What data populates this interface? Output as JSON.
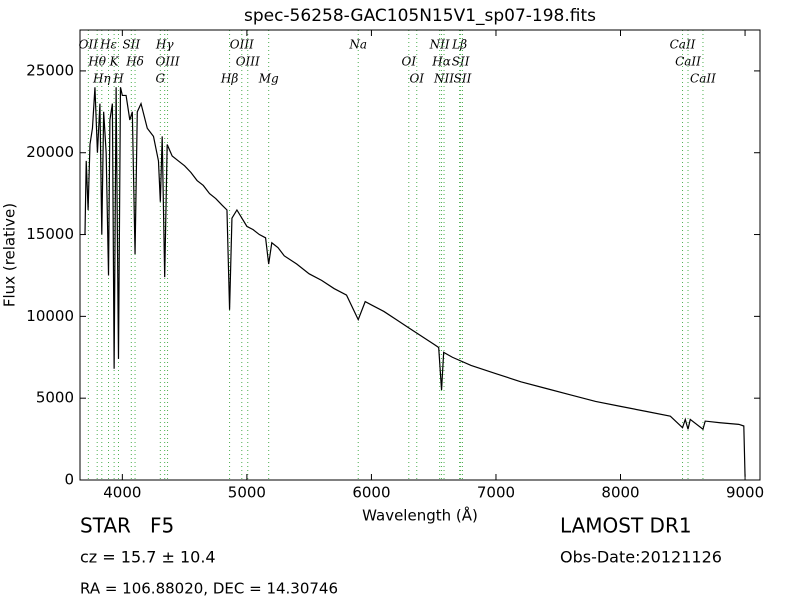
{
  "chart_data": {
    "type": "line",
    "title": "spec-56258-GAC105N15V1_sp07-198.fits",
    "x_label": "Wavelength (Å)",
    "y_label": "Flux (relative)",
    "class_text": "STAR   F5",
    "cz_text": "cz = 15.7 ± 10.4",
    "coord_text": "RA = 106.88020, DEC = 14.30746",
    "survey_text": "LAMOST DR1",
    "date_text": "Obs-Date:20121126",
    "color": "#000000",
    "line_color": "#4caf50",
    "xlim": [
      3660,
      9120
    ],
    "ylim": [
      0,
      27500
    ],
    "xticks": [
      4000,
      5000,
      6000,
      7000,
      8000,
      9000
    ],
    "yticks": [
      0,
      5000,
      10000,
      15000,
      20000,
      25000
    ],
    "x": [
      3700,
      3710,
      3725,
      3740,
      3760,
      3780,
      3800,
      3820,
      3835,
      3850,
      3870,
      3889,
      3900,
      3920,
      3934,
      3950,
      3969,
      3985,
      4000,
      4030,
      4060,
      4080,
      4102,
      4120,
      4150,
      4200,
      4250,
      4290,
      4305,
      4320,
      4340,
      4360,
      4400,
      4450,
      4500,
      4550,
      4600,
      4650,
      4700,
      4750,
      4800,
      4840,
      4861,
      4880,
      4920,
      4960,
      5000,
      5050,
      5100,
      5150,
      5175,
      5200,
      5250,
      5300,
      5400,
      5500,
      5600,
      5700,
      5800,
      5894,
      5950,
      6000,
      6100,
      6200,
      6300,
      6400,
      6500,
      6540,
      6563,
      6580,
      6650,
      6800,
      7000,
      7200,
      7400,
      7600,
      7800,
      8000,
      8200,
      8400,
      8498,
      8520,
      8542,
      8560,
      8662,
      8680,
      8800,
      8950,
      8990,
      9000
    ],
    "values": [
      15000,
      19500,
      16500,
      20500,
      21500,
      24000,
      20000,
      23000,
      15000,
      22500,
      20000,
      12500,
      22000,
      23000,
      6800,
      24000,
      7400,
      24000,
      23500,
      23500,
      22000,
      22500,
      13800,
      22500,
      23000,
      21500,
      21000,
      19500,
      17000,
      21000,
      12400,
      20500,
      19800,
      19500,
      19200,
      18800,
      18300,
      18000,
      17500,
      17200,
      16800,
      16500,
      10400,
      16000,
      16500,
      16000,
      15500,
      15300,
      15000,
      14800,
      13200,
      14500,
      14200,
      13700,
      13200,
      12600,
      12200,
      11700,
      11300,
      9800,
      10900,
      10700,
      10300,
      9800,
      9300,
      8800,
      8300,
      8100,
      5500,
      7800,
      7500,
      7000,
      6500,
      6000,
      5600,
      5200,
      4800,
      4500,
      4200,
      3900,
      3200,
      3700,
      3100,
      3700,
      3100,
      3600,
      3500,
      3400,
      3300,
      200
    ],
    "lines": [
      {
        "label": "OII",
        "wavelength": 3727
      },
      {
        "label": "Hθ",
        "wavelength": 3798
      },
      {
        "label": "Hη",
        "wavelength": 3835
      },
      {
        "label": "Hε",
        "wavelength": 3889
      },
      {
        "label": "K",
        "wavelength": 3934
      },
      {
        "label": "H",
        "wavelength": 3969
      },
      {
        "label": "SII",
        "wavelength": 4072
      },
      {
        "label": "Hδ",
        "wavelength": 4102
      },
      {
        "label": "G",
        "wavelength": 4305
      },
      {
        "label": "Hγ",
        "wavelength": 4340
      },
      {
        "label": "OIII",
        "wavelength": 4363
      },
      {
        "label": "Hβ",
        "wavelength": 4861
      },
      {
        "label": "OIII",
        "wavelength": 4959
      },
      {
        "label": "OIII",
        "wavelength": 5007
      },
      {
        "label": "Mg",
        "wavelength": 5175
      },
      {
        "label": "Na",
        "wavelength": 5894
      },
      {
        "label": "OI",
        "wavelength": 6300
      },
      {
        "label": "OI",
        "wavelength": 6364
      },
      {
        "label": "NII",
        "wavelength": 6548
      },
      {
        "label": "Hα",
        "wavelength": 6563
      },
      {
        "label": "NII",
        "wavelength": 6583
      },
      {
        "label": "Lβ",
        "wavelength": 6708
      },
      {
        "label": "SII",
        "wavelength": 6716
      },
      {
        "label": "SII",
        "wavelength": 6731
      },
      {
        "label": "CaII",
        "wavelength": 8498
      },
      {
        "label": "CaII",
        "wavelength": 8542
      },
      {
        "label": "CaII",
        "wavelength": 8662
      }
    ]
  }
}
